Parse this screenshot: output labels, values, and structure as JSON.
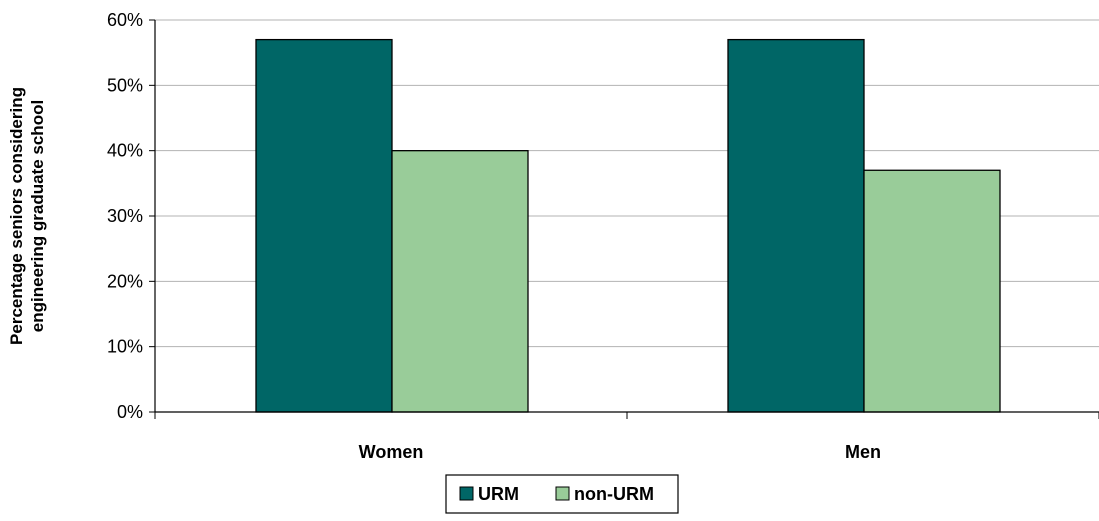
{
  "chart_data": {
    "type": "bar",
    "categories": [
      "Women",
      "Men"
    ],
    "series": [
      {
        "name": "URM",
        "values": [
          57,
          57
        ],
        "color": "#006666"
      },
      {
        "name": "non-URM",
        "values": [
          40,
          37
        ],
        "color": "#99cc99"
      }
    ],
    "ylabel_lines": [
      "Percentage seniors considering",
      "engineering graduate school"
    ],
    "ylim": [
      0,
      60
    ],
    "yticks": [
      0,
      10,
      20,
      30,
      40,
      50,
      60
    ],
    "ytick_labels": [
      "0%",
      "10%",
      "20%",
      "30%",
      "40%",
      "50%",
      "60%"
    ],
    "grid": true,
    "legend_position": "bottom-center"
  }
}
